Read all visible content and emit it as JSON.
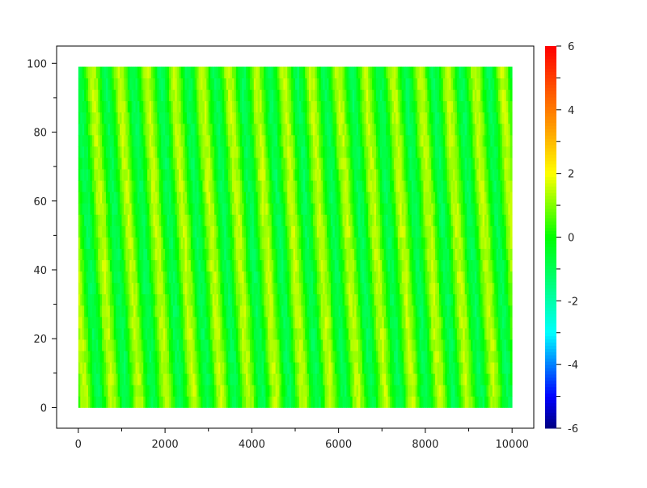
{
  "chart_data": {
    "type": "heatmap",
    "title": "",
    "xlabel": "",
    "ylabel": "",
    "xlim": [
      -500,
      10500
    ],
    "ylim": [
      -6,
      105
    ],
    "data_x_range": [
      0,
      10000
    ],
    "data_y_range": [
      0,
      99
    ],
    "x_ticks": [
      "0",
      "2000",
      "4000",
      "6000",
      "8000",
      "10000"
    ],
    "x_tick_values": [
      0,
      2000,
      4000,
      6000,
      8000,
      10000
    ],
    "y_ticks": [
      "0",
      "20",
      "40",
      "60",
      "80",
      "100"
    ],
    "y_tick_values": [
      0,
      20,
      40,
      60,
      80,
      100
    ],
    "grid": false,
    "pattern": {
      "description_values": "diagonal stripes of z oscillating between about -1 and 1.5",
      "z_min": -1,
      "z_max": 1.5,
      "stripe_period_x": 630,
      "stripe_shift_x_over_full_y": -470
    },
    "colorbar": {
      "range": [
        -6,
        6
      ],
      "ticks": [
        "-6",
        "-4",
        "-2",
        "0",
        "2",
        "4",
        "6"
      ],
      "tick_values": [
        -6,
        -4,
        -2,
        0,
        2,
        4,
        6
      ],
      "colormap": "jet",
      "colors": [
        "#000080",
        "#0000ff",
        "#00ffff",
        "#00ff80",
        "#00ff00",
        "#c0ff00",
        "#ffff00",
        "#ff9900",
        "#ff0000"
      ]
    }
  }
}
